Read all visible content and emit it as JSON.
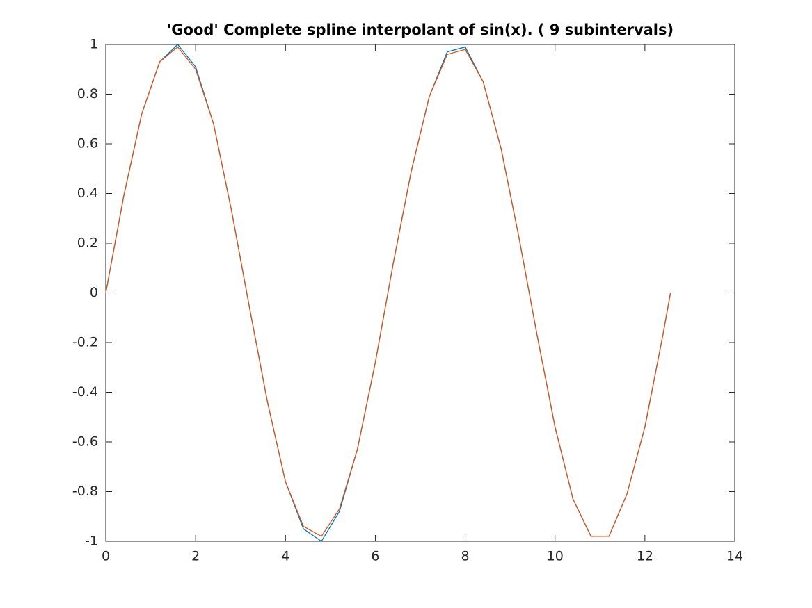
{
  "chart_data": {
    "type": "line",
    "title": "'Good' Complete spline interpolant of sin(x). ( 9 subintervals)",
    "x": [
      0,
      0.4,
      0.8,
      1.2,
      1.6,
      2.0,
      2.4,
      2.8,
      3.2,
      3.6,
      4.0,
      4.4,
      4.8,
      5.2,
      5.6,
      6.0,
      6.4,
      6.8,
      7.2,
      7.6,
      8.0,
      8.4,
      8.8,
      9.2,
      9.6,
      10.0,
      10.4,
      10.8,
      11.2,
      11.6,
      12.0,
      12.4,
      12.57
    ],
    "series": [
      {
        "color": "#0072bd",
        "values": [
          0,
          0.39,
          0.72,
          0.93,
          1.0,
          0.91,
          0.68,
          0.33,
          -0.06,
          -0.44,
          -0.76,
          -0.95,
          -1.0,
          -0.88,
          -0.63,
          -0.28,
          0.12,
          0.49,
          0.79,
          0.97,
          0.99,
          0.85,
          0.58,
          0.22,
          -0.17,
          -0.54,
          -0.83,
          -0.98,
          -0.98,
          -0.81,
          -0.54,
          -0.17,
          0.0
        ]
      },
      {
        "color": "#d95319",
        "values": [
          0,
          0.39,
          0.72,
          0.93,
          0.99,
          0.9,
          0.68,
          0.33,
          -0.06,
          -0.44,
          -0.76,
          -0.94,
          -0.98,
          -0.87,
          -0.63,
          -0.28,
          0.12,
          0.49,
          0.79,
          0.96,
          0.98,
          0.85,
          0.58,
          0.22,
          -0.17,
          -0.54,
          -0.83,
          -0.98,
          -0.98,
          -0.81,
          -0.54,
          -0.17,
          0.0
        ]
      }
    ],
    "xlim": [
      0,
      14
    ],
    "xticks": [
      0,
      2,
      4,
      6,
      8,
      10,
      12,
      14
    ],
    "ylim": [
      -1,
      1
    ],
    "yticks": [
      -1,
      -0.8,
      -0.6,
      -0.4,
      -0.2,
      0,
      0.2,
      0.4,
      0.6,
      0.8,
      1
    ],
    "grid": false
  }
}
